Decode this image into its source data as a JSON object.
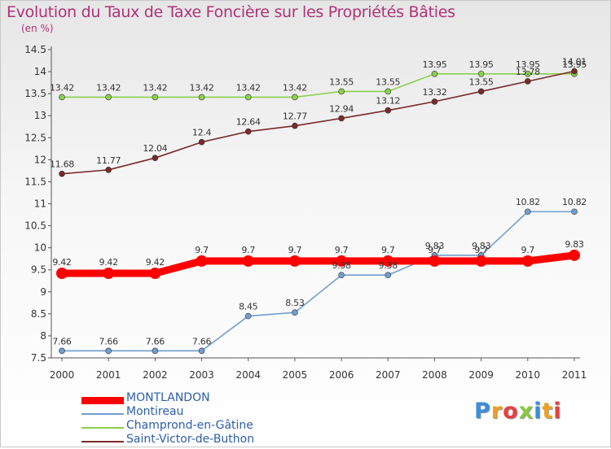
{
  "chart_data": {
    "type": "line",
    "title": "Evolution du Taux de Taxe Foncière sur les Propriétés Bâties",
    "ylabel": "(en %)",
    "xlabel": "",
    "x": [
      "2000",
      "2001",
      "2002",
      "2003",
      "2004",
      "2005",
      "2006",
      "2007",
      "2008",
      "2009",
      "2010",
      "2011"
    ],
    "ylim": [
      7.5,
      14.5
    ],
    "yticks": [
      "7.5",
      "8",
      "8.5",
      "9",
      "9.5",
      "10",
      "10.5",
      "11",
      "11.5",
      "12",
      "12.5",
      "13",
      "13.5",
      "14",
      "14.5"
    ],
    "grid": false,
    "legend_position": "bottom-left",
    "series": [
      {
        "name": "MONTLANDON",
        "color": "#ff0000",
        "values": [
          9.42,
          9.42,
          9.42,
          9.7,
          9.7,
          9.7,
          9.7,
          9.7,
          9.7,
          9.7,
          9.7,
          9.83
        ],
        "labels": [
          "9.42",
          "9.42",
          "9.42",
          "9.7",
          "9.7",
          "9.7",
          "9.7",
          "9.7",
          "9.7",
          "9.7",
          "9.7",
          "9.83"
        ]
      },
      {
        "name": "Montireau",
        "color": "#6f9fd0",
        "values": [
          7.66,
          7.66,
          7.66,
          7.66,
          8.45,
          8.53,
          9.38,
          9.38,
          9.83,
          9.83,
          10.82,
          10.82
        ],
        "labels": [
          "7.66",
          "7.66",
          "7.66",
          "7.66",
          "8.45",
          "8.53",
          "9.38",
          "9.38",
          "9.83",
          "9.83",
          "10.82",
          "10.82"
        ]
      },
      {
        "name": "Champrond-en-Gâtine",
        "color": "#8ad04c",
        "values": [
          13.42,
          13.42,
          13.42,
          13.42,
          13.42,
          13.42,
          13.55,
          13.55,
          13.95,
          13.95,
          13.95,
          13.95
        ],
        "labels": [
          "13.42",
          "13.42",
          "13.42",
          "13.42",
          "13.42",
          "13.42",
          "13.55",
          "13.55",
          "13.95",
          "13.95",
          "13.95",
          "13.95"
        ]
      },
      {
        "name": "Saint-Victor-de-Buthon",
        "color": "#7a2a2a",
        "values": [
          11.68,
          11.77,
          12.04,
          12.4,
          12.64,
          12.77,
          12.94,
          13.12,
          13.32,
          13.55,
          13.78,
          14.01
        ],
        "labels": [
          "11.68",
          "11.77",
          "12.04",
          "12.4",
          "12.64",
          "12.77",
          "12.94",
          "13.12",
          "13.32",
          "13.55",
          "13.78",
          "14.01"
        ]
      }
    ]
  },
  "logo": {
    "letters": [
      "P",
      "r",
      "o",
      "x",
      "i",
      "t",
      "i"
    ],
    "colors": [
      "#3a8fd8",
      "#f0a020",
      "#e64040",
      "#8ac840",
      "#3a8fd8",
      "#f0a020",
      "#e64040"
    ]
  }
}
